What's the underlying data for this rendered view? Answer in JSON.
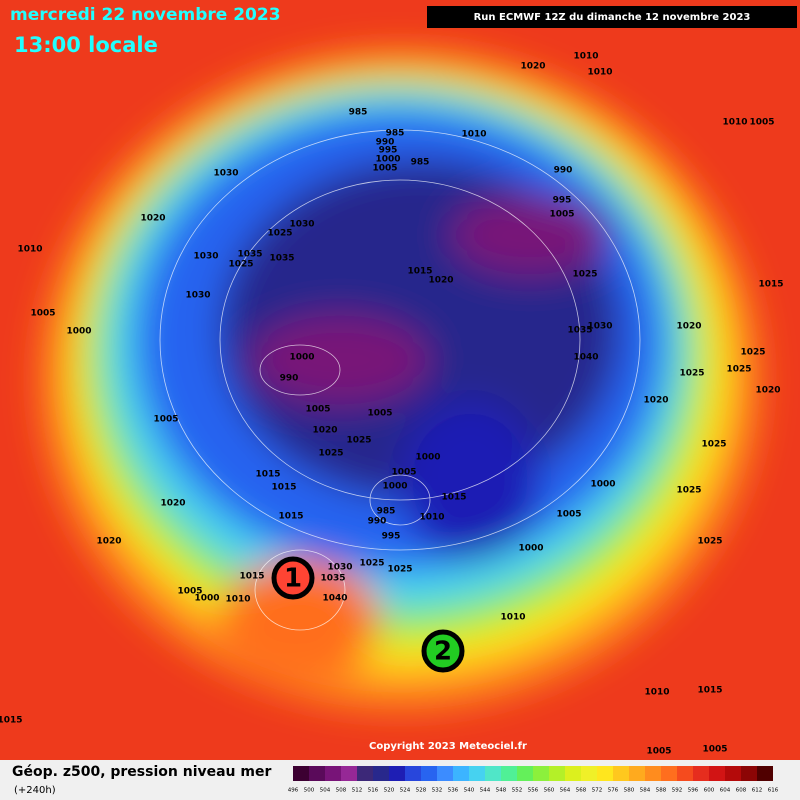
{
  "header": {
    "date": "mercredi 22 novembre 2023",
    "time": "13:00 locale",
    "run": "Run ECMWF 12Z du dimanche 12 novembre 2023"
  },
  "copyright": "Copyright 2023 Meteociel.fr",
  "footer": {
    "title": "Géop. z500, pression niveau mer",
    "lead": "(+240h)"
  },
  "markers": [
    "1",
    "2"
  ],
  "isobar_labels": [
    "1020",
    "1010",
    "1010",
    "1010",
    "1005",
    "985",
    "985",
    "990",
    "995",
    "1000",
    "1005",
    "985",
    "1010",
    "990",
    "995",
    "1005",
    "1030",
    "1020",
    "1030",
    "1025",
    "1010",
    "1030",
    "1035",
    "1025",
    "1035",
    "1030",
    "1005",
    "1000",
    "1015",
    "1020",
    "1025",
    "1015",
    "1035",
    "1030",
    "1020",
    "1040",
    "1025",
    "1000",
    "990",
    "1025",
    "1025",
    "1020",
    "1020",
    "1005",
    "1005",
    "1005",
    "1020",
    "1025",
    "1025",
    "1025",
    "1015",
    "1015",
    "1000",
    "1005",
    "1000",
    "1000",
    "1015",
    "1020",
    "985",
    "1010",
    "990",
    "1005",
    "1015",
    "1025",
    "995",
    "1020",
    "1025",
    "1000",
    "1015",
    "1030",
    "1035",
    "1025",
    "1025",
    "1005",
    "1000",
    "1010",
    "1040",
    "1010",
    "1010",
    "1015",
    "1015",
    "1005",
    "1005"
  ],
  "legend": {
    "ticks": [
      496,
      500,
      504,
      508,
      512,
      516,
      520,
      524,
      528,
      532,
      536,
      540,
      544,
      548,
      552,
      556,
      560,
      564,
      568,
      572,
      576,
      580,
      584,
      588,
      592,
      596,
      600,
      604,
      608,
      612,
      616
    ],
    "colors": [
      "#3c0032",
      "#5a0a5a",
      "#781478",
      "#962896",
      "#3c2878",
      "#28288c",
      "#1e1eb4",
      "#2846dc",
      "#2864f0",
      "#3c8cff",
      "#3cb4ff",
      "#46d2f0",
      "#50e6c8",
      "#50f096",
      "#64f05a",
      "#8cf03c",
      "#b4f028",
      "#dcf01e",
      "#f0f028",
      "#ffe61e",
      "#ffc81e",
      "#ffaa1e",
      "#ff8c1e",
      "#ff6e1e",
      "#f54b1e",
      "#e62d1e",
      "#d21414",
      "#b40a0a",
      "#8c0505",
      "#500000"
    ]
  }
}
